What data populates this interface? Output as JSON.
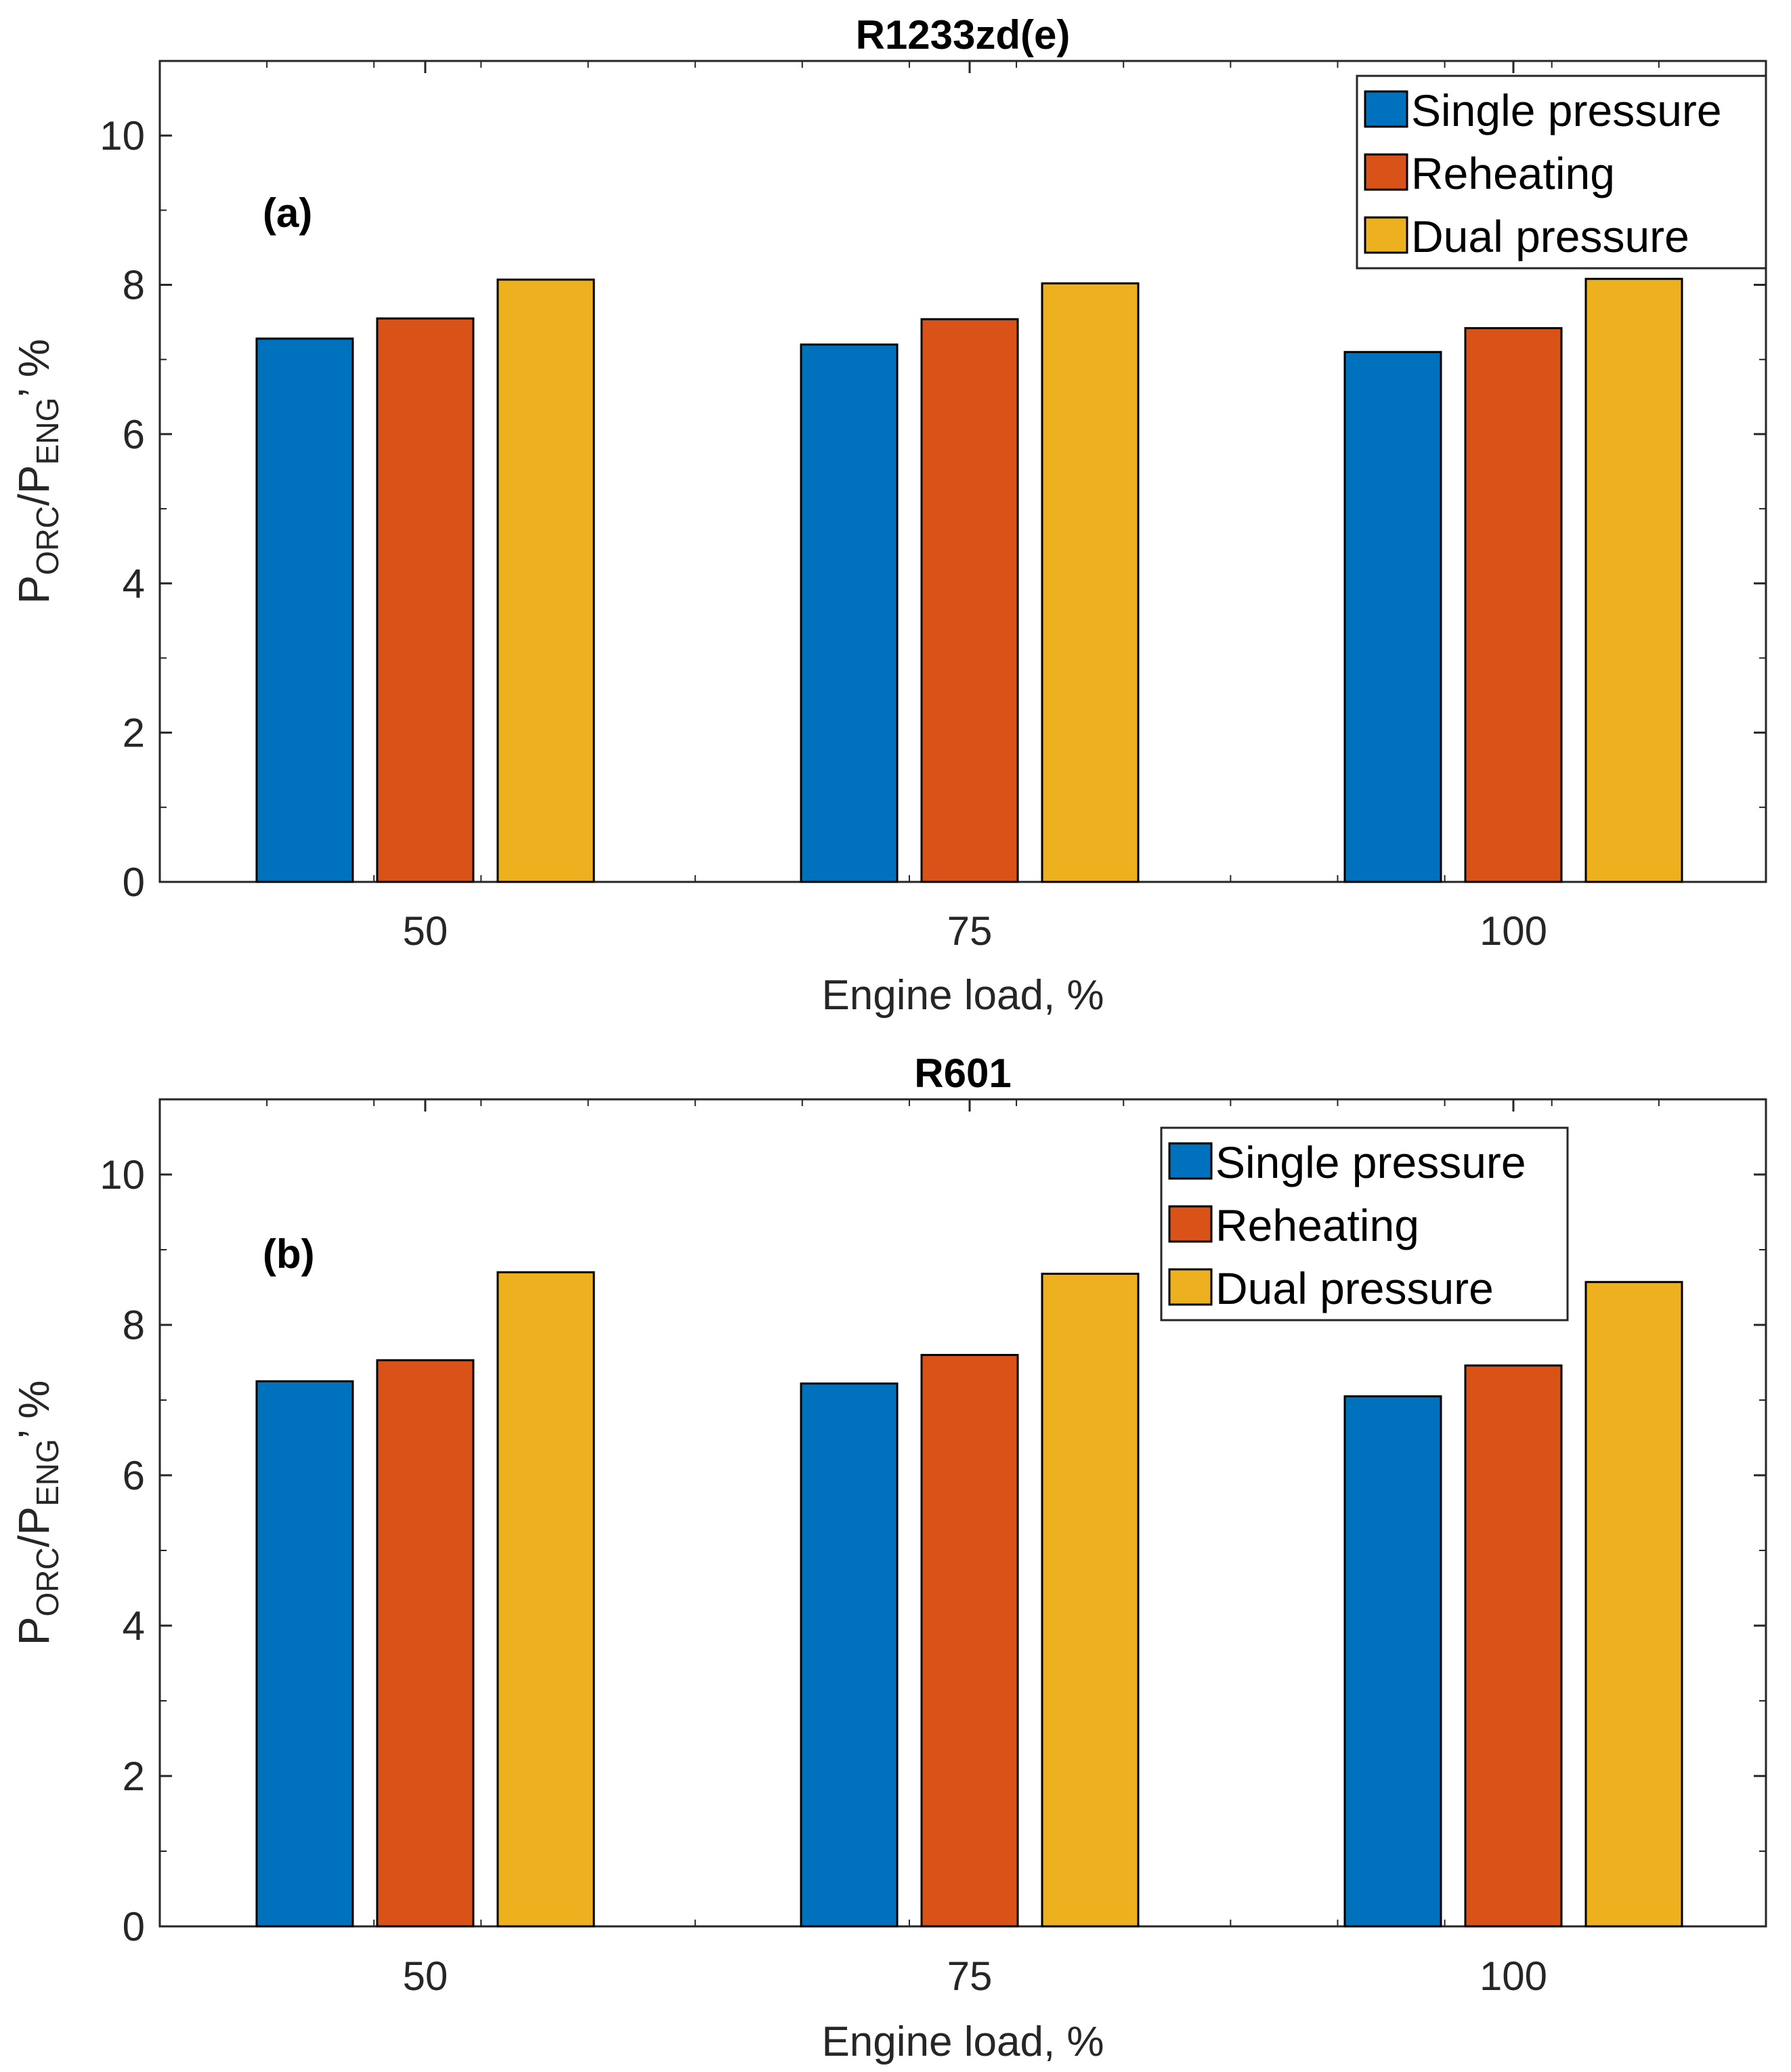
{
  "chart_data": [
    {
      "type": "bar",
      "title": "R1233zd(e)",
      "panel_label": "(a)",
      "xlabel": "Engine load, %",
      "ylabel": {
        "base": "P",
        "sub1": "ORC",
        "mid": "/P",
        "sub2": "ENG",
        "tail": "’ %"
      },
      "categories": [
        "50",
        "75",
        "100"
      ],
      "ylim": [
        0,
        11
      ],
      "yticks": [
        "0",
        "2",
        "4",
        "6",
        "8",
        "10"
      ],
      "legend_position": "top-right",
      "series": [
        {
          "name": "Single pressure",
          "color": "#0072BD",
          "values": [
            7.28,
            7.2,
            7.1
          ]
        },
        {
          "name": "Reheating",
          "color": "#D95319",
          "values": [
            7.55,
            7.54,
            7.42
          ]
        },
        {
          "name": "Dual pressure",
          "color": "#EDB120",
          "values": [
            8.07,
            8.02,
            8.08
          ]
        }
      ]
    },
    {
      "type": "bar",
      "title": "R601",
      "panel_label": "(b)",
      "xlabel": "Engine load, %",
      "ylabel": {
        "base": "P",
        "sub1": "ORC",
        "mid": "/P",
        "sub2": "ENG",
        "tail": "’ %"
      },
      "categories": [
        "50",
        "75",
        "100"
      ],
      "ylim": [
        0,
        11
      ],
      "yticks": [
        "0",
        "2",
        "4",
        "6",
        "8",
        "10"
      ],
      "legend_position": "top-right",
      "series": [
        {
          "name": "Single pressure",
          "color": "#0072BD",
          "values": [
            7.25,
            7.22,
            7.05
          ]
        },
        {
          "name": "Reheating",
          "color": "#D95319",
          "values": [
            7.53,
            7.6,
            7.46
          ]
        },
        {
          "name": "Dual pressure",
          "color": "#EDB120",
          "values": [
            8.7,
            8.68,
            8.57
          ]
        }
      ]
    }
  ]
}
